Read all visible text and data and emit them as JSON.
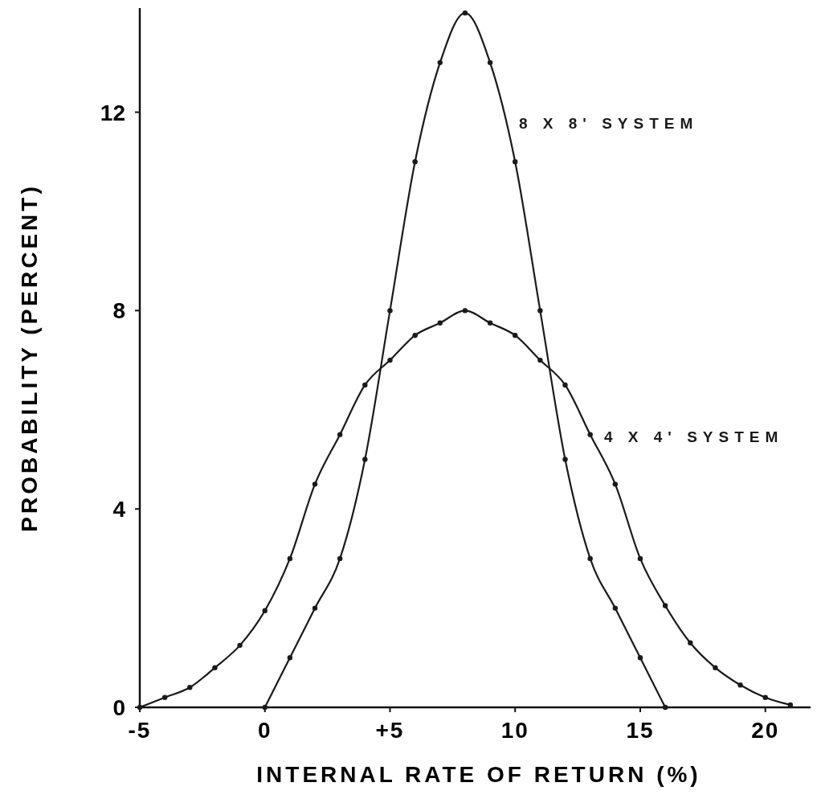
{
  "chart_data": {
    "type": "line",
    "xlabel": "INTERNAL RATE OF RETURN (%)",
    "ylabel": "PROBABILITY (PERCENT)",
    "xlim": [
      -5,
      22
    ],
    "ylim": [
      0,
      14.1
    ],
    "xticks": [
      -5,
      0,
      {
        "value": 5,
        "label": "+5"
      },
      10,
      15,
      20
    ],
    "yticks": [
      0,
      4,
      8,
      12
    ],
    "grid": false,
    "marker": "circle",
    "line_style": "solid",
    "series": [
      {
        "name": "8 X 8' SYSTEM",
        "color": "#1a1a1a",
        "x": [
          0,
          1,
          2,
          3,
          4,
          5,
          6,
          7,
          8,
          9,
          10,
          11,
          12,
          13,
          14,
          15,
          16
        ],
        "values": [
          0,
          1,
          2,
          3,
          5,
          8,
          11,
          13,
          14,
          13,
          11,
          8,
          5,
          3,
          2,
          1,
          0
        ]
      },
      {
        "name": "4 X 4' SYSTEM",
        "color": "#1a1a1a",
        "x": [
          -5,
          -4,
          -3,
          -2,
          -1,
          0,
          1,
          2,
          3,
          4,
          5,
          6,
          7,
          8,
          9,
          10,
          11,
          12,
          13,
          14,
          15,
          16,
          17,
          18,
          19,
          20,
          21
        ],
        "values": [
          0,
          0.2,
          0.4,
          0.8,
          1.25,
          1.95,
          3,
          4.5,
          5.5,
          6.5,
          7,
          7.5,
          7.75,
          8,
          7.75,
          7.5,
          7,
          6.5,
          5.5,
          4.5,
          3,
          2.05,
          1.3,
          0.8,
          0.45,
          0.2,
          0.05
        ]
      }
    ]
  }
}
